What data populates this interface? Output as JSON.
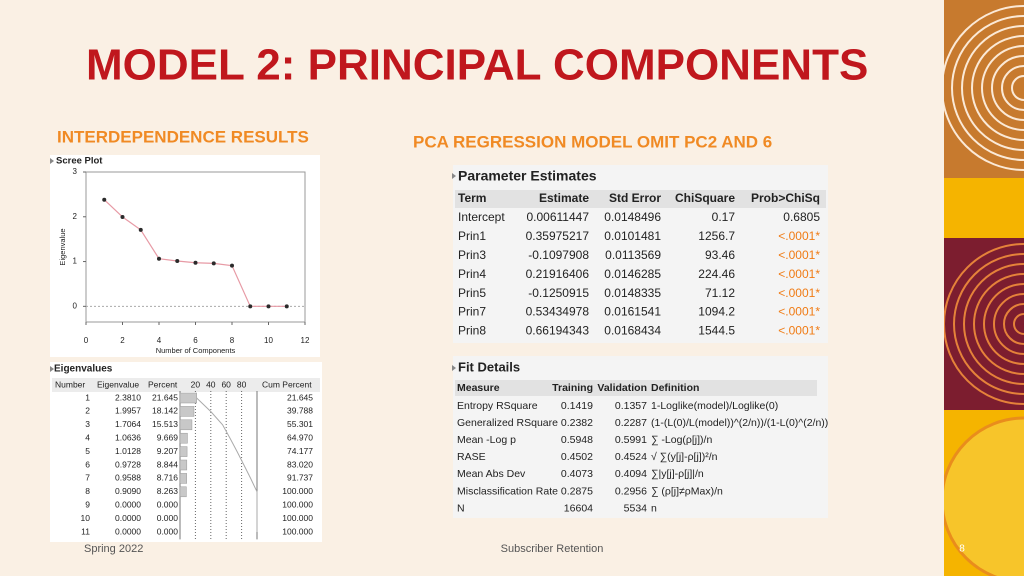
{
  "title": "MODEL 2: PRINCIPAL COMPONENTS",
  "left_heading": "INTERDEPENDENCE RESULTS",
  "right_heading": "PCA REGRESSION MODEL OMIT PC2 AND 6",
  "chart_data": {
    "type": "line",
    "title": "Scree Plot",
    "x_label": "Number of Components",
    "y_label": "Eigenvalue",
    "x": [
      1,
      2,
      3,
      4,
      5,
      6,
      7,
      8,
      9,
      10,
      11
    ],
    "values": [
      2.381,
      1.9957,
      1.7064,
      1.0636,
      1.0128,
      0.9728,
      0.9588,
      0.909,
      0,
      0,
      0
    ],
    "xlim": [
      0,
      12
    ],
    "ylim": [
      -0.35,
      3
    ],
    "xticks": [
      0,
      2,
      4,
      6,
      8,
      10,
      12
    ],
    "yticks": [
      0,
      1,
      2,
      3
    ],
    "color": "#e79aa5",
    "marker_color": "#2b2b2b",
    "reference_line": 0
  },
  "eigenvalues": {
    "title": "Eigenvalues",
    "columns": [
      "Number",
      "Eigenvalue",
      "Percent",
      "Cum Percent"
    ],
    "bar_ticks": [
      20,
      40,
      60,
      80
    ],
    "bar_lim": [
      0,
      100
    ],
    "rows": [
      [
        "1",
        "2.3810",
        "21.645",
        "21.645"
      ],
      [
        "2",
        "1.9957",
        "18.142",
        "39.788"
      ],
      [
        "3",
        "1.7064",
        "15.513",
        "55.301"
      ],
      [
        "4",
        "1.0636",
        "9.669",
        "64.970"
      ],
      [
        "5",
        "1.0128",
        "9.207",
        "74.177"
      ],
      [
        "6",
        "0.9728",
        "8.844",
        "83.020"
      ],
      [
        "7",
        "0.9588",
        "8.716",
        "91.737"
      ],
      [
        "8",
        "0.9090",
        "8.263",
        "100.000"
      ],
      [
        "9",
        "0.0000",
        "0.000",
        "100.000"
      ],
      [
        "10",
        "0.0000",
        "0.000",
        "100.000"
      ],
      [
        "11",
        "0.0000",
        "0.000",
        "100.000"
      ]
    ]
  },
  "parameter_estimates": {
    "title": "Parameter Estimates",
    "columns": [
      "Term",
      "Estimate",
      "Std Error",
      "ChiSquare",
      "Prob>ChiSq"
    ],
    "rows": [
      [
        "Intercept",
        "0.00611447",
        "0.0148496",
        "0.17",
        "0.6805"
      ],
      [
        "Prin1",
        "0.35975217",
        "0.0101481",
        "1256.7",
        "<.0001*"
      ],
      [
        "Prin3",
        "-0.1097908",
        "0.0113569",
        "93.46",
        "<.0001*"
      ],
      [
        "Prin4",
        "0.21916406",
        "0.0146285",
        "224.46",
        "<.0001*"
      ],
      [
        "Prin5",
        "-0.1250915",
        "0.0148335",
        "71.12",
        "<.0001*"
      ],
      [
        "Prin7",
        "0.53434978",
        "0.0161541",
        "1094.2",
        "<.0001*"
      ],
      [
        "Prin8",
        "0.66194343",
        "0.0168434",
        "1544.5",
        "<.0001*"
      ]
    ],
    "highlight_color": "#f07b14"
  },
  "fit_details": {
    "title": "Fit Details",
    "columns": [
      "Measure",
      "Training",
      "Validation",
      "Definition"
    ],
    "rows": [
      [
        "Entropy RSquare",
        "0.1419",
        "0.1357",
        "1-Loglike(model)/Loglike(0)"
      ],
      [
        "Generalized RSquare",
        "0.2382",
        "0.2287",
        "(1-(L(0)/L(model))^(2/n))/(1-L(0)^(2/n))"
      ],
      [
        "Mean -Log p",
        "0.5948",
        "0.5991",
        "∑ -Log(ρ[j])/n"
      ],
      [
        "RASE",
        "0.4502",
        "0.4524",
        "√ ∑(y[j]-ρ[j])²/n"
      ],
      [
        "Mean Abs Dev",
        "0.4073",
        "0.4094",
        "∑|y[j]-ρ[j]|/n"
      ],
      [
        "Misclassification Rate",
        "0.2875",
        "0.2956",
        "∑ (ρ[j]≠ρMax)/n"
      ],
      [
        "N",
        "16604",
        "5534",
        "n"
      ]
    ]
  },
  "footer": {
    "left": "Spring 2022",
    "center": "Subscriber Retention",
    "page": "8"
  }
}
